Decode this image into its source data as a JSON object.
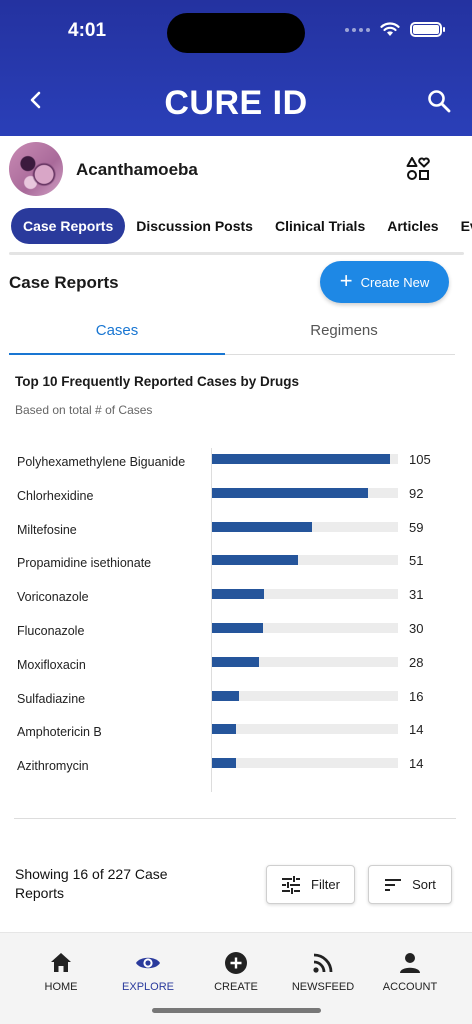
{
  "status_bar": {
    "time": "4:01"
  },
  "header": {
    "title": "CURE ID",
    "back_icon": "chevron-left-icon",
    "search_icon": "search-icon"
  },
  "topic": {
    "name": "Acanthamoeba",
    "follow_icon": "shapes-heart-icon"
  },
  "tabs": [
    {
      "label": "Case Reports",
      "active": true
    },
    {
      "label": "Discussion Posts"
    },
    {
      "label": "Clinical Trials"
    },
    {
      "label": "Articles"
    },
    {
      "label": "Ev"
    }
  ],
  "section": {
    "title": "Case Reports",
    "create_label": "Create New"
  },
  "subtabs": {
    "cases": "Cases",
    "regimens": "Regimens"
  },
  "chart_data": {
    "type": "bar",
    "orientation": "horizontal",
    "title": "Top 10 Frequently Reported Cases by Drugs",
    "subtitle": "Based on total # of Cases",
    "categories": [
      "Polyhexamethylene Biguanide",
      "Chlorhexidine",
      "Miltefosine",
      "Propamidine isethionate",
      "Voriconazole",
      "Fluconazole",
      "Moxifloxacin",
      "Sulfadiazine",
      "Amphotericin B",
      "Azithromycin"
    ],
    "values": [
      105,
      92,
      59,
      51,
      31,
      30,
      28,
      16,
      14,
      14
    ],
    "xlim": [
      0,
      110
    ],
    "bar_color": "#25559b",
    "track_color": "#ececec"
  },
  "list_footer": {
    "showing": "Showing 16 of 227 Case Reports",
    "filter_label": "Filter",
    "sort_label": "Sort"
  },
  "bottom_nav": [
    {
      "label": "HOME",
      "icon": "home-icon"
    },
    {
      "label": "EXPLORE",
      "icon": "eye-icon",
      "active": true
    },
    {
      "label": "CREATE",
      "icon": "plus-circle-icon"
    },
    {
      "label": "NEWSFEED",
      "icon": "rss-icon"
    },
    {
      "label": "ACCOUNT",
      "icon": "person-icon"
    }
  ],
  "colors": {
    "header": "#2a3fb8",
    "accent": "#1e88e5",
    "active_tab": "#2a3a9c"
  }
}
